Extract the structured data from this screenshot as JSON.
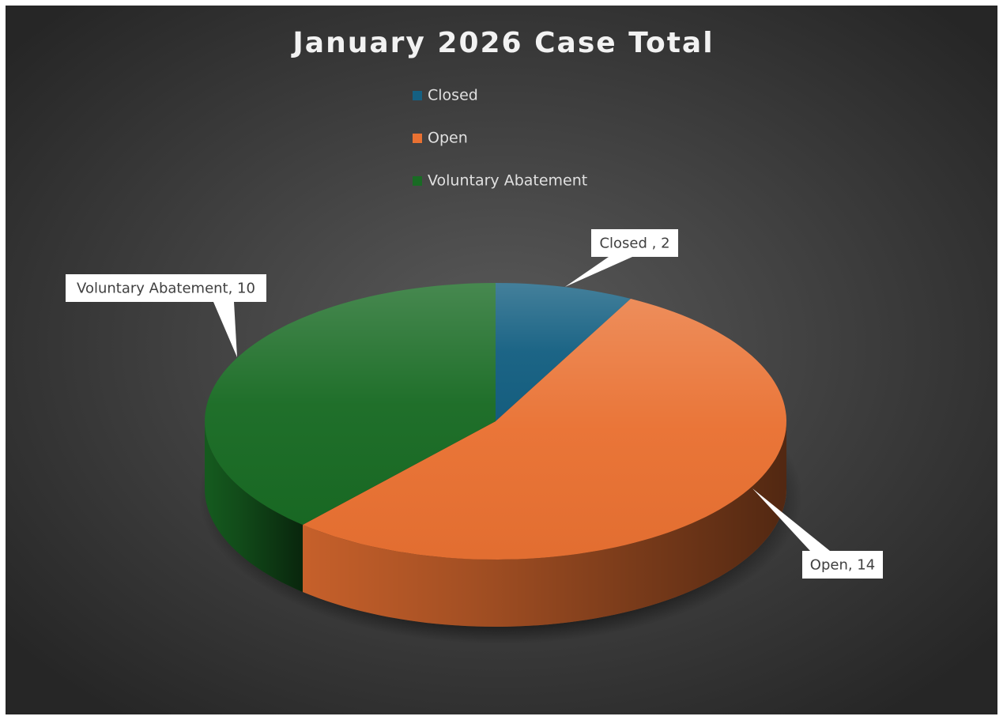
{
  "chart_data": {
    "type": "pie",
    "title": "January 2026 Case Total",
    "categories": [
      "Closed",
      "Open",
      "Voluntary Abatement"
    ],
    "values": [
      2,
      14,
      10
    ],
    "value_labels": [
      "Closed , 2",
      "Open, 14",
      "Voluntary Abatement, 10"
    ],
    "colors": [
      "#156082",
      "#e97132",
      "#196b24"
    ],
    "legend": "top"
  }
}
